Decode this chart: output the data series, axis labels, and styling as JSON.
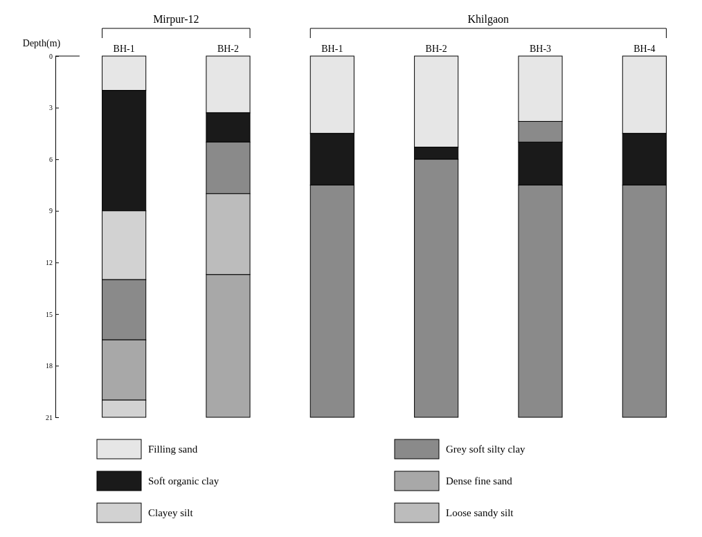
{
  "chart_data": {
    "type": "bar",
    "ylabel": "Depth(m)",
    "categories": [
      "BH-1",
      "BH-2",
      "BH-1",
      "BH-2",
      "BH-3",
      "BH-4"
    ],
    "ylim": [
      21,
      0
    ],
    "yticks": [
      0,
      3,
      6,
      9,
      12,
      15,
      18,
      21
    ],
    "annotations": [
      "Mirpur-12",
      "Khilgaon"
    ],
    "legend": "bottom",
    "series": [
      {
        "name": "Filling sand",
        "color": "#e6e6e6",
        "base": [
          0,
          0,
          0,
          0,
          0,
          0
        ],
        "values": [
          2,
          3.3,
          4.5,
          5.3,
          3.8,
          4.5
        ]
      },
      {
        "name": "Soft organic clay",
        "color": "#1a1a1a",
        "base": [
          2,
          3.3,
          4.5,
          5.3,
          5,
          4.5
        ],
        "values": [
          7,
          1.7,
          3,
          0.7,
          2.5,
          3
        ]
      },
      {
        "name": "Clayey silt",
        "color": "#d2d2d2",
        "base": [
          9,
          null,
          null,
          null,
          null,
          null
        ],
        "values": [
          4,
          null,
          null,
          null,
          null,
          null
        ]
      },
      {
        "name": "Grey soft silty clay",
        "color": "#8a8a8a",
        "base": [
          13,
          5,
          7.5,
          6,
          3.8,
          7.5
        ],
        "values": [
          3.5,
          3,
          13.5,
          15,
          1.2,
          13.5
        ]
      },
      {
        "name": "Dense fine sand",
        "color": "#a8a8a8",
        "base": [
          16.5,
          12.7,
          null,
          null,
          null,
          null
        ],
        "values": [
          3.5,
          8.3,
          null,
          null,
          null,
          null
        ]
      },
      {
        "name": "Loose sandy silt",
        "color": "#bcbcbc",
        "base": [
          null,
          8,
          null,
          null,
          null,
          null
        ],
        "values": [
          null,
          4.7,
          null,
          null,
          null,
          null
        ]
      },
      {
        "color": "#d2d2d2",
        "base": [
          20,
          null,
          null,
          null,
          null,
          null
        ],
        "values": [
          1,
          null,
          null,
          null,
          null,
          null
        ]
      },
      {
        "color": "#8a8a8a",
        "base": [
          null,
          null,
          null,
          null,
          7.5,
          null
        ],
        "values": [
          null,
          null,
          null,
          null,
          13.5,
          null
        ]
      }
    ]
  }
}
